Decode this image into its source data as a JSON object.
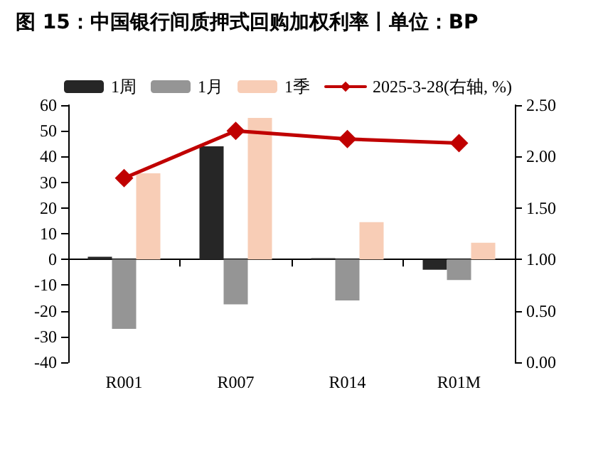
{
  "chart_data": {
    "type": "bar",
    "title": "图 15：中国银行间质押式回购加权利率丨单位：BP",
    "categories": [
      "R001",
      "R007",
      "R014",
      "R01M"
    ],
    "series": [
      {
        "name": "1周",
        "color": "#262626",
        "values": [
          1,
          44,
          0.5,
          -4
        ]
      },
      {
        "name": "1月",
        "color": "#959595",
        "values": [
          -27,
          -17.5,
          -16,
          -8
        ]
      },
      {
        "name": "1季",
        "color": "#f8cdb6",
        "values": [
          33.5,
          55,
          14.5,
          6.5
        ]
      },
      {
        "name": "2025-3-28(右轴, %)",
        "color": "#c00000",
        "type": "line",
        "axis": "y2",
        "marker": "diamond",
        "values": [
          1.79,
          2.25,
          2.17,
          2.13
        ]
      }
    ],
    "ylim": [
      -40,
      60
    ],
    "yticks": [
      -40,
      -30,
      -20,
      -10,
      0,
      10,
      20,
      30,
      40,
      50,
      60
    ],
    "y2lim": [
      0,
      2.5
    ],
    "y2ticks": [
      {
        "value": 0,
        "label": "0.00"
      },
      {
        "value": 0.5,
        "label": "0.50"
      },
      {
        "value": 1,
        "label": "1.00"
      },
      {
        "value": 1.5,
        "label": "1.50"
      },
      {
        "value": 2,
        "label": "2.00"
      },
      {
        "value": 2.5,
        "label": "2.50"
      }
    ],
    "legend": "top"
  }
}
